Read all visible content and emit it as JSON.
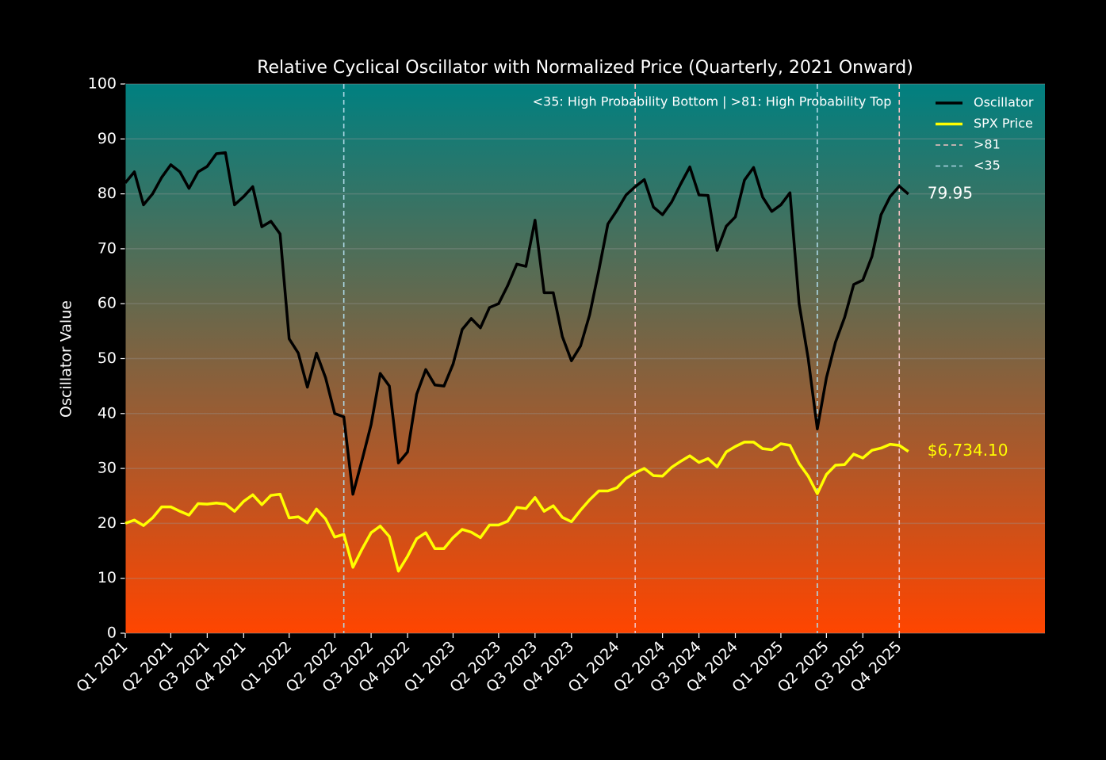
{
  "chart_data": {
    "type": "line",
    "title": "Relative Cyclical Oscillator with Normalized Price (Quarterly, 2021 Onward)",
    "ylabel": "Oscillator Value",
    "annotation": "<35: High Probability Bottom | >81: High Probability Top",
    "background_gradient": [
      "#008080",
      "#ff4500"
    ],
    "grid": true,
    "legend": "upper right",
    "xlim": [
      0,
      101
    ],
    "ylim": [
      0,
      100
    ],
    "yticks": [
      0,
      10,
      20,
      30,
      40,
      50,
      60,
      70,
      80,
      90,
      100
    ],
    "xticks": [
      {
        "value": 0,
        "label": "Q1 2021"
      },
      {
        "value": 5,
        "label": "Q2 2021"
      },
      {
        "value": 9,
        "label": "Q3 2021"
      },
      {
        "value": 13,
        "label": "Q4 2021"
      },
      {
        "value": 18,
        "label": "Q1 2022"
      },
      {
        "value": 23,
        "label": "Q2 2022"
      },
      {
        "value": 27,
        "label": "Q3 2022"
      },
      {
        "value": 31,
        "label": "Q4 2022"
      },
      {
        "value": 36,
        "label": "Q1 2023"
      },
      {
        "value": 41,
        "label": "Q2 2023"
      },
      {
        "value": 45,
        "label": "Q3 2023"
      },
      {
        "value": 49,
        "label": "Q4 2023"
      },
      {
        "value": 54,
        "label": "Q1 2024"
      },
      {
        "value": 59,
        "label": "Q2 2024"
      },
      {
        "value": 63,
        "label": "Q3 2024"
      },
      {
        "value": 67,
        "label": "Q4 2024"
      },
      {
        "value": 72,
        "label": "Q1 2025"
      },
      {
        "value": 77,
        "label": "Q2 2025"
      },
      {
        "value": 81,
        "label": "Q3 2025"
      },
      {
        "value": 85,
        "label": "Q4 2025"
      }
    ],
    "x": [
      0,
      1,
      2,
      3,
      4,
      5,
      6,
      7,
      8,
      9,
      10,
      11,
      12,
      13,
      14,
      15,
      16,
      17,
      18,
      19,
      20,
      21,
      22,
      23,
      24,
      25,
      26,
      27,
      28,
      29,
      30,
      31,
      32,
      33,
      34,
      35,
      36,
      37,
      38,
      39,
      40,
      41,
      42,
      43,
      44,
      45,
      46,
      47,
      48,
      49,
      50,
      51,
      52,
      53,
      54,
      55,
      56,
      57,
      58,
      59,
      60,
      61,
      62,
      63,
      64,
      65,
      66,
      67,
      68,
      69,
      70,
      71,
      72,
      73,
      74,
      75,
      76,
      77,
      78,
      79,
      80,
      81,
      82,
      83,
      84,
      85,
      86
    ],
    "series": [
      {
        "name": "Oscillator",
        "color": "#000000",
        "last_label": "79.95",
        "label_color": "#ffffff",
        "values": [
          82,
          84,
          78,
          80,
          83,
          85.3,
          84,
          81,
          84,
          85,
          87.3,
          87.5,
          78,
          79.5,
          81.3,
          74,
          75,
          72.7,
          53.6,
          51,
          44.8,
          51,
          46.5,
          40,
          39.4,
          25.3,
          31.5,
          38,
          47.3,
          45,
          31,
          33,
          43.5,
          48,
          45.2,
          45,
          49,
          55.3,
          57.3,
          55.6,
          59.3,
          60,
          63.3,
          67.2,
          66.8,
          75.2,
          62,
          62,
          54,
          49.6,
          52.3,
          58,
          66,
          74.5,
          77,
          79.8,
          81.3,
          82.6,
          77.6,
          76.2,
          78.5,
          81.8,
          84.9,
          79.8,
          79.7,
          69.7,
          74.1,
          75.8,
          82.5,
          84.8,
          79.4,
          76.8,
          78,
          80.2,
          60,
          50,
          37.2,
          46.5,
          53,
          57.5,
          63.5,
          64.3,
          68.6,
          76.2,
          79.5,
          81.4,
          79.95
        ]
      },
      {
        "name": "SPX Price",
        "color": "#ffff00",
        "last_label": "$6,734.10",
        "label_color": "#ffff00",
        "values": [
          20,
          20.6,
          19.6,
          21,
          23,
          23,
          22.2,
          21.5,
          23.6,
          23.5,
          23.7,
          23.5,
          22.2,
          24,
          25.2,
          23.4,
          25.1,
          25.3,
          21,
          21.2,
          20.1,
          22.6,
          20.8,
          17.5,
          18,
          12,
          15.3,
          18.3,
          19.5,
          17.6,
          11.3,
          14,
          17.2,
          18.3,
          15.4,
          15.4,
          17.4,
          18.9,
          18.4,
          17.4,
          19.7,
          19.7,
          20.4,
          22.9,
          22.7,
          24.7,
          22.2,
          23.2,
          21.1,
          20.3,
          22.4,
          24.3,
          25.9,
          25.9,
          26.5,
          28.2,
          29.2,
          30,
          28.7,
          28.6,
          30.2,
          31.3,
          32.3,
          31.1,
          31.8,
          30.3,
          33,
          34,
          34.8,
          34.8,
          33.6,
          33.4,
          34.5,
          34.2,
          30.9,
          28.6,
          25.4,
          28.9,
          30.6,
          30.7,
          32.6,
          31.9,
          33.3,
          33.7,
          34.4,
          34.2,
          33.1
        ]
      }
    ],
    "threshold_lines": [
      {
        "name": ">81",
        "color": "#f4c2c2",
        "x": [
          56,
          85
        ]
      },
      {
        "name": "<35",
        "color": "#add8e6",
        "x": [
          24,
          76
        ]
      }
    ]
  }
}
